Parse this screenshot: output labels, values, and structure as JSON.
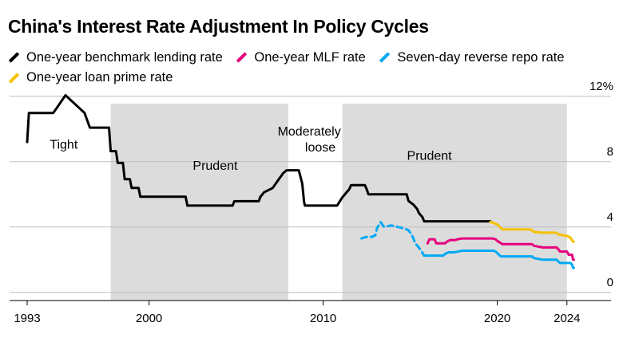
{
  "chart_data": {
    "type": "line",
    "title": "China's Interest Rate Adjustment In Policy Cycles",
    "x_ticks": [
      1993,
      2000,
      2010,
      2020,
      2024
    ],
    "xlim": [
      1993,
      2026
    ],
    "y_ticks": [
      {
        "value": 12,
        "label": "12%"
      },
      {
        "value": 8,
        "label": "8"
      },
      {
        "value": 4,
        "label": "4"
      },
      {
        "value": 0,
        "label": "0"
      }
    ],
    "ylim": [
      -0.5,
      12.5
    ],
    "grid": "horizontal",
    "legend_position": "top",
    "periods": [
      {
        "label": "Tight",
        "start": 1993,
        "end": 1997.8,
        "shaded": false
      },
      {
        "label": "Prudent",
        "start": 1997.8,
        "end": 2008.0,
        "shaded": true
      },
      {
        "label": "Moderately loose",
        "start": 2008.0,
        "end": 2011.1,
        "shaded": false
      },
      {
        "label": "Prudent",
        "start": 2011.1,
        "end": 2024.0,
        "shaded": true
      }
    ],
    "series": [
      {
        "name": "One-year benchmark lending rate",
        "color": "#000000",
        "dashed": false,
        "points": [
          [
            1993.0,
            9.2
          ],
          [
            1993.1,
            10.98
          ],
          [
            1994.5,
            10.98
          ],
          [
            1995.2,
            12.06
          ],
          [
            1996.3,
            10.98
          ],
          [
            1996.6,
            10.08
          ],
          [
            1997.7,
            10.08
          ],
          [
            1997.8,
            8.64
          ],
          [
            1998.1,
            8.64
          ],
          [
            1998.2,
            7.92
          ],
          [
            1998.5,
            7.92
          ],
          [
            1998.6,
            6.93
          ],
          [
            1998.9,
            6.93
          ],
          [
            1999.0,
            6.39
          ],
          [
            1999.4,
            6.39
          ],
          [
            1999.5,
            5.85
          ],
          [
            2002.1,
            5.85
          ],
          [
            2002.2,
            5.31
          ],
          [
            2004.8,
            5.31
          ],
          [
            2004.9,
            5.58
          ],
          [
            2006.3,
            5.58
          ],
          [
            2006.4,
            5.85
          ],
          [
            2006.6,
            6.12
          ],
          [
            2007.1,
            6.39
          ],
          [
            2007.4,
            6.84
          ],
          [
            2007.7,
            7.29
          ],
          [
            2007.9,
            7.47
          ],
          [
            2008.6,
            7.47
          ],
          [
            2008.8,
            6.66
          ],
          [
            2008.9,
            5.58
          ],
          [
            2008.95,
            5.31
          ],
          [
            2010.8,
            5.31
          ],
          [
            2010.95,
            5.56
          ],
          [
            2011.1,
            5.81
          ],
          [
            2011.3,
            6.06
          ],
          [
            2011.5,
            6.31
          ],
          [
            2011.6,
            6.56
          ],
          [
            2012.4,
            6.56
          ],
          [
            2012.5,
            6.31
          ],
          [
            2012.6,
            6.0
          ],
          [
            2014.8,
            6.0
          ],
          [
            2014.9,
            5.6
          ],
          [
            2015.2,
            5.35
          ],
          [
            2015.4,
            5.1
          ],
          [
            2015.5,
            4.85
          ],
          [
            2015.7,
            4.6
          ],
          [
            2015.8,
            4.35
          ],
          [
            2019.6,
            4.35
          ]
        ]
      },
      {
        "name": "One-year MLF rate",
        "color": "#e6007e",
        "dashed": false,
        "points": [
          [
            2016.0,
            3.0
          ],
          [
            2016.1,
            3.25
          ],
          [
            2016.4,
            3.25
          ],
          [
            2016.5,
            3.0
          ],
          [
            2017.0,
            3.0
          ],
          [
            2017.1,
            3.1
          ],
          [
            2017.3,
            3.2
          ],
          [
            2017.6,
            3.2
          ],
          [
            2017.7,
            3.25
          ],
          [
            2018.0,
            3.3
          ],
          [
            2019.7,
            3.3
          ],
          [
            2019.9,
            3.25
          ],
          [
            2020.0,
            3.15
          ],
          [
            2020.3,
            2.95
          ],
          [
            2022.0,
            2.95
          ],
          [
            2022.1,
            2.85
          ],
          [
            2022.6,
            2.75
          ],
          [
            2023.4,
            2.75
          ],
          [
            2023.5,
            2.65
          ],
          [
            2023.6,
            2.5
          ],
          [
            2024.0,
            2.5
          ],
          [
            2024.1,
            2.3
          ],
          [
            2024.3,
            2.3
          ],
          [
            2024.35,
            2.0
          ],
          [
            2024.4,
            2.0
          ]
        ]
      },
      {
        "name": "Seven-day reverse repo rate",
        "color": "#00a9f4",
        "dashed": false,
        "points": [
          [
            2015.8,
            2.25
          ],
          [
            2016.3,
            2.25
          ],
          [
            2016.5,
            2.25
          ],
          [
            2016.9,
            2.25
          ],
          [
            2017.0,
            2.35
          ],
          [
            2017.2,
            2.45
          ],
          [
            2017.5,
            2.45
          ],
          [
            2018.0,
            2.55
          ],
          [
            2019.8,
            2.55
          ],
          [
            2019.9,
            2.5
          ],
          [
            2020.0,
            2.4
          ],
          [
            2020.2,
            2.2
          ],
          [
            2022.0,
            2.2
          ],
          [
            2022.1,
            2.1
          ],
          [
            2022.6,
            2.0
          ],
          [
            2023.4,
            2.0
          ],
          [
            2023.5,
            1.9
          ],
          [
            2023.6,
            1.8
          ],
          [
            2024.2,
            1.8
          ],
          [
            2024.3,
            1.7
          ],
          [
            2024.35,
            1.5
          ],
          [
            2024.4,
            1.5
          ]
        ]
      },
      {
        "name": "Seven-day reverse repo rate (dashed)",
        "color": "#00a9f4",
        "dashed": true,
        "points": [
          [
            2012.2,
            3.3
          ],
          [
            2012.5,
            3.4
          ],
          [
            2012.8,
            3.4
          ],
          [
            2013.0,
            3.5
          ],
          [
            2013.1,
            3.95
          ],
          [
            2013.3,
            4.3
          ],
          [
            2013.5,
            4.0
          ],
          [
            2013.9,
            4.1
          ],
          [
            2014.3,
            4.0
          ],
          [
            2014.7,
            3.9
          ],
          [
            2014.9,
            3.8
          ],
          [
            2015.1,
            3.5
          ],
          [
            2015.3,
            3.0
          ],
          [
            2015.6,
            2.6
          ],
          [
            2015.8,
            2.25
          ]
        ]
      },
      {
        "name": "One-year loan prime rate",
        "color": "#f7c100",
        "dashed": false,
        "points": [
          [
            2019.6,
            4.31
          ],
          [
            2019.9,
            4.2
          ],
          [
            2020.0,
            4.15
          ],
          [
            2020.1,
            4.05
          ],
          [
            2020.3,
            3.85
          ],
          [
            2021.9,
            3.85
          ],
          [
            2022.0,
            3.8
          ],
          [
            2022.1,
            3.7
          ],
          [
            2022.6,
            3.65
          ],
          [
            2023.4,
            3.65
          ],
          [
            2023.5,
            3.55
          ],
          [
            2024.0,
            3.45
          ],
          [
            2024.2,
            3.35
          ],
          [
            2024.35,
            3.1
          ],
          [
            2024.4,
            3.1
          ]
        ]
      }
    ],
    "legend": [
      {
        "label": "One-year benchmark lending rate",
        "color": "#000000"
      },
      {
        "label": "One-year MLF rate",
        "color": "#e6007e"
      },
      {
        "label": "Seven-day reverse repo rate",
        "color": "#00a9f4"
      },
      {
        "label": "One-year loan prime rate",
        "color": "#f7c100"
      }
    ]
  }
}
